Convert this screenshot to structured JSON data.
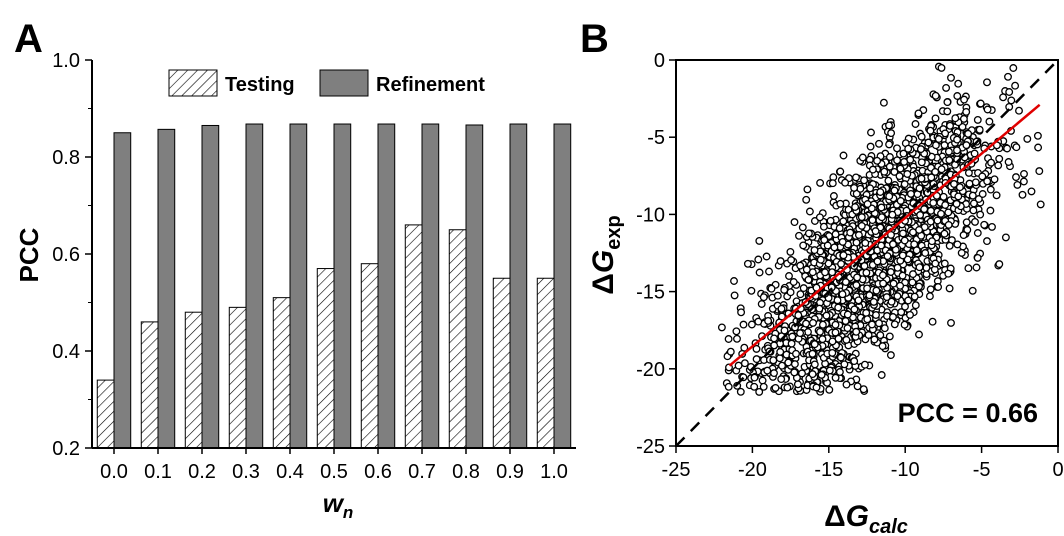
{
  "chart_data": [
    {
      "panel_label": "A",
      "type": "bar",
      "xlabel_base": "w",
      "xlabel_sub": "n",
      "ylabel": "PCC",
      "ylim": [
        0.2,
        1.0
      ],
      "yticks": [
        "0.2",
        "0.4",
        "0.6",
        "0.8",
        "1.0"
      ],
      "categories": [
        "0.0",
        "0.1",
        "0.2",
        "0.3",
        "0.4",
        "0.5",
        "0.6",
        "0.7",
        "0.8",
        "0.9",
        "1.0"
      ],
      "legend_position": "top",
      "series": [
        {
          "name": "Testing",
          "style": "hatched",
          "values": [
            0.34,
            0.46,
            0.48,
            0.49,
            0.51,
            0.57,
            0.58,
            0.66,
            0.65,
            0.55,
            0.55
          ]
        },
        {
          "name": "Refinement",
          "color": "#7f7f7f",
          "values": [
            0.85,
            0.857,
            0.865,
            0.868,
            0.868,
            0.868,
            0.868,
            0.868,
            0.866,
            0.868,
            0.868
          ]
        }
      ]
    },
    {
      "panel_label": "B",
      "type": "scatter",
      "xlabel_prefix": "Δ",
      "xlabel_base": "G",
      "xlabel_sub": "calc",
      "ylabel_prefix": "Δ",
      "ylabel_base": "G",
      "ylabel_sub": "exp",
      "xlim": [
        -25,
        0
      ],
      "ylim": [
        -25,
        0
      ],
      "xticks": [
        "-25",
        "-20",
        "-15",
        "-10",
        "-5",
        "0"
      ],
      "yticks": [
        "-25",
        "-20",
        "-15",
        "-10",
        "-5",
        "0"
      ],
      "annotation": "PCC = 0.66",
      "identity_line": {
        "style": "dashed",
        "color": "#000000",
        "from": [
          -25,
          -25
        ],
        "to": [
          0,
          0
        ]
      },
      "fit_line": {
        "color": "#e00000",
        "from": [
          -21.5,
          -19.8
        ],
        "to": [
          -1.2,
          -2.9
        ]
      },
      "point_count": 2500,
      "point_style": "open-circle",
      "x_range_points": [
        -22,
        -1
      ],
      "y_range_points": [
        -21.5,
        0
      ]
    }
  ]
}
